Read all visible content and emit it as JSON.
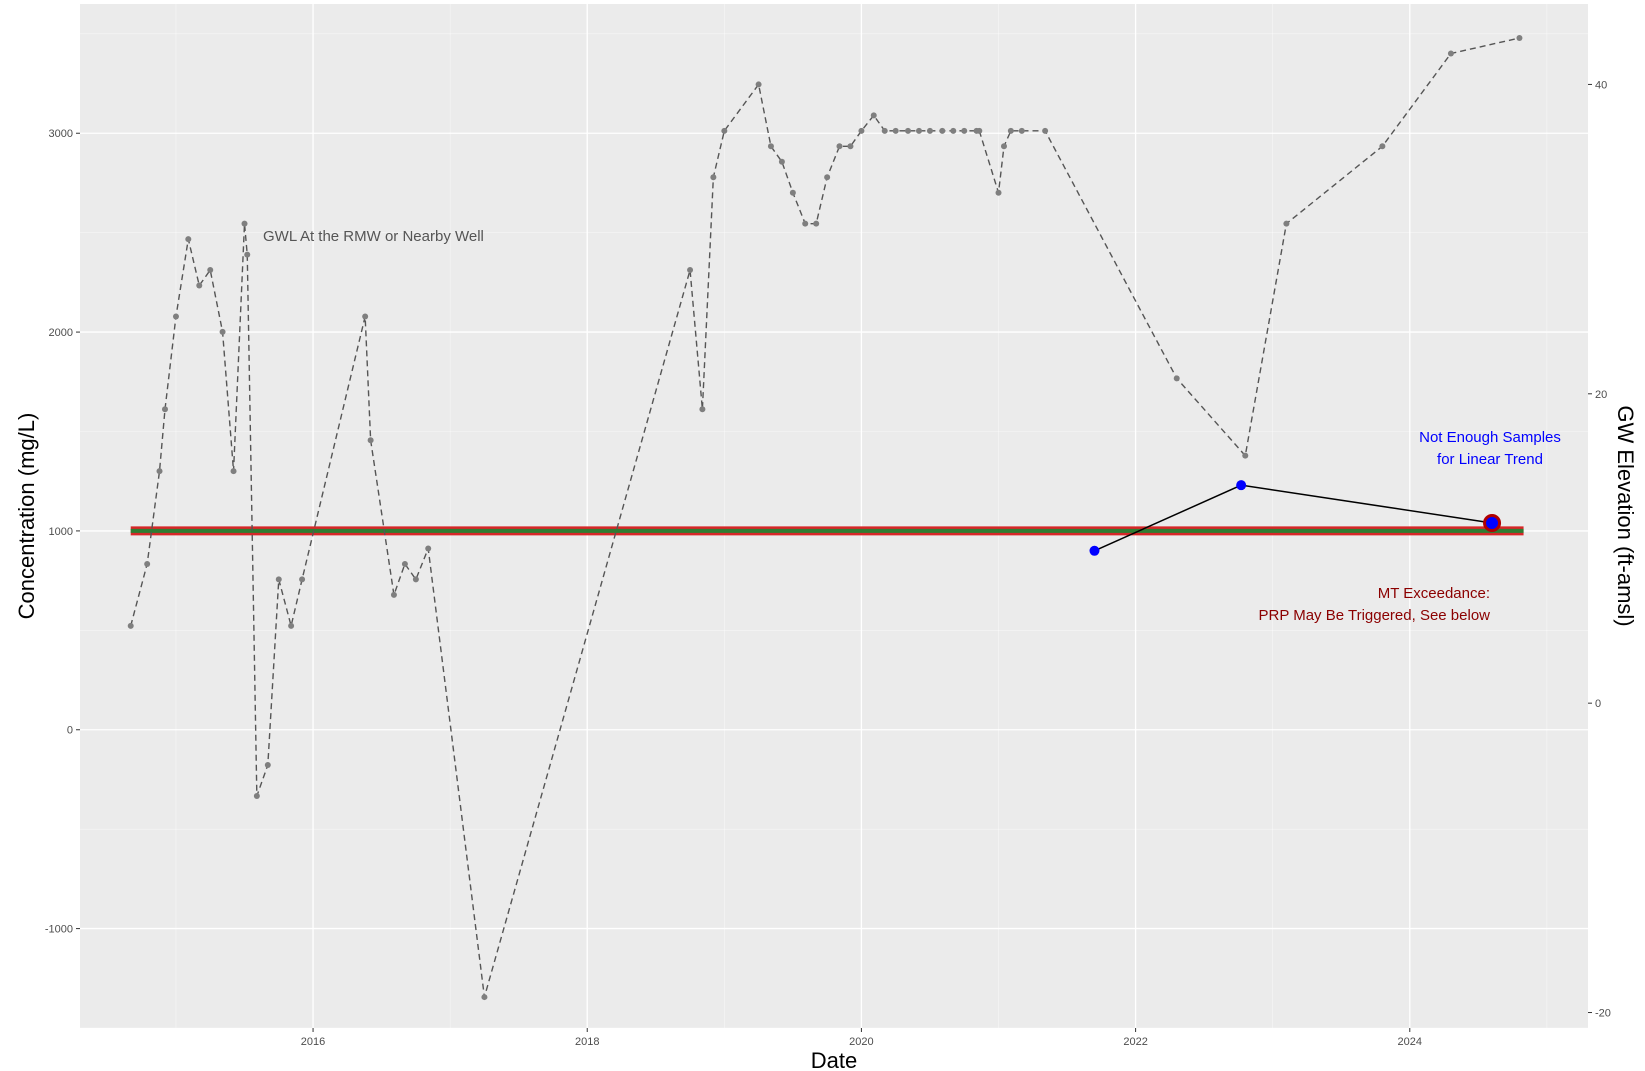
{
  "chart_data": {
    "type": "line",
    "title": "",
    "xlabel": "Date",
    "ylabel_left": "Concentration (mg/L)",
    "ylabel_right": "GW Elevation (ft-amsl)",
    "x_ticks": [
      "2016",
      "2018",
      "2020",
      "2022",
      "2024"
    ],
    "x_range": [
      2014.3,
      2025.3
    ],
    "y_left_ticks": [
      -1000,
      0,
      1000,
      2000,
      3000
    ],
    "y_left_range": [
      -1500,
      3650
    ],
    "y_right_ticks": [
      -20,
      0,
      20,
      40
    ],
    "y_right_range": [
      -21.0,
      45.2
    ],
    "grid": true,
    "legend": "none",
    "colors": {
      "panel": "#ebebeb",
      "grid_major": "#ffffff",
      "gwl_line": "#555555",
      "gwl_point": "#7f7f7f",
      "mt_line_outer": "#d62728",
      "mt_line_inner": "#2e7d32",
      "concentration": "#0000ff",
      "concentration_line": "#000000",
      "exceed_point_ring": "#b00000",
      "annot_blue": "#0000ff",
      "annot_red": "#8b0000",
      "annot_gray": "#555555"
    },
    "threshold": {
      "name": "MT",
      "value": 1000,
      "x_start": 2014.67,
      "x_end": 2024.83
    },
    "series": [
      {
        "name": "GWL At the RMW or Nearby Well",
        "axis": "right",
        "style": "dashed",
        "x": [
          2014.67,
          2014.79,
          2014.88,
          2014.92,
          2015.0,
          2015.09,
          2015.17,
          2015.25,
          2015.34,
          2015.42,
          2015.5,
          2015.52,
          2015.59,
          2015.67,
          2015.75,
          2015.84,
          2015.92,
          2016.38,
          2016.42,
          2016.59,
          2016.67,
          2016.75,
          2016.84,
          2017.25,
          2018.75,
          2018.84,
          2018.92,
          2019.0,
          2019.25,
          2019.34,
          2019.42,
          2019.5,
          2019.59,
          2019.67,
          2019.75,
          2019.84,
          2019.92,
          2020.0,
          2020.09,
          2020.17,
          2020.25,
          2020.34,
          2020.42,
          2020.5,
          2020.59,
          2020.67,
          2020.75,
          2020.84,
          2020.86,
          2021.0,
          2021.04,
          2021.09,
          2021.17,
          2021.34,
          2022.3,
          2022.8,
          2023.1,
          2023.8,
          2024.3,
          2024.8
        ],
        "y": [
          5,
          9,
          15,
          19,
          25,
          30,
          27,
          28,
          24,
          15,
          31,
          29,
          -6,
          -4,
          8,
          5,
          8,
          25,
          17,
          7,
          9,
          8,
          10,
          -19,
          28,
          19,
          34,
          37,
          40,
          36,
          35,
          33,
          31,
          31,
          34,
          36,
          36,
          37,
          38,
          37,
          37,
          37,
          37,
          37,
          37,
          37,
          37,
          37,
          37,
          33,
          36,
          37,
          37,
          37,
          21,
          16,
          31,
          36,
          42,
          43
        ]
      },
      {
        "name": "Concentration",
        "axis": "left",
        "x": [
          2021.7,
          2022.77,
          2024.6
        ],
        "y": [
          900,
          1230,
          1040
        ]
      }
    ],
    "exceedance_point": {
      "x": 2024.6,
      "y": 1040
    },
    "annotations": {
      "gwl_label": "GWL At the RMW or Nearby Well",
      "trend_line1": "Not Enough Samples",
      "trend_line2": "for Linear Trend",
      "mt_line1": "MT Exceedance:",
      "mt_line2": "PRP May Be Triggered, See below"
    }
  }
}
